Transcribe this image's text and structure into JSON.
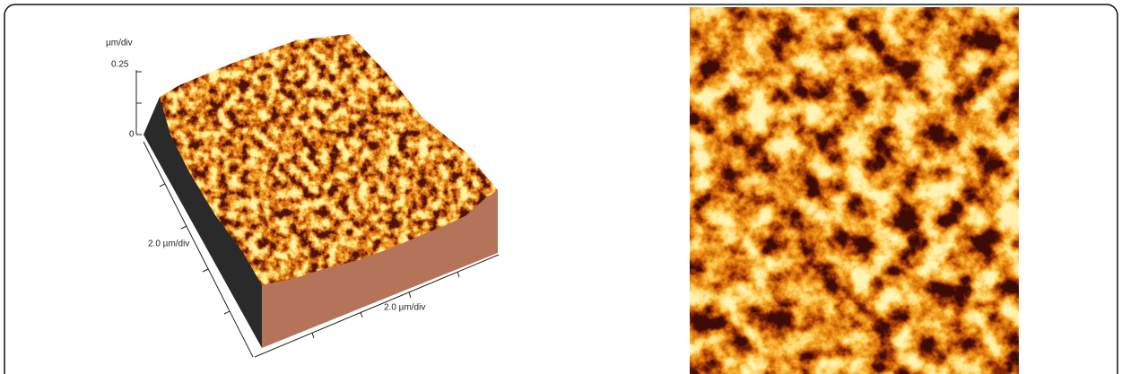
{
  "surface_plot": {
    "z_unit": "µm/div",
    "z_ticks": [
      0.25,
      0
    ],
    "left_axis_label": "2.0 µm/div",
    "bottom_axis_label": "2.0 µm/div"
  }
}
